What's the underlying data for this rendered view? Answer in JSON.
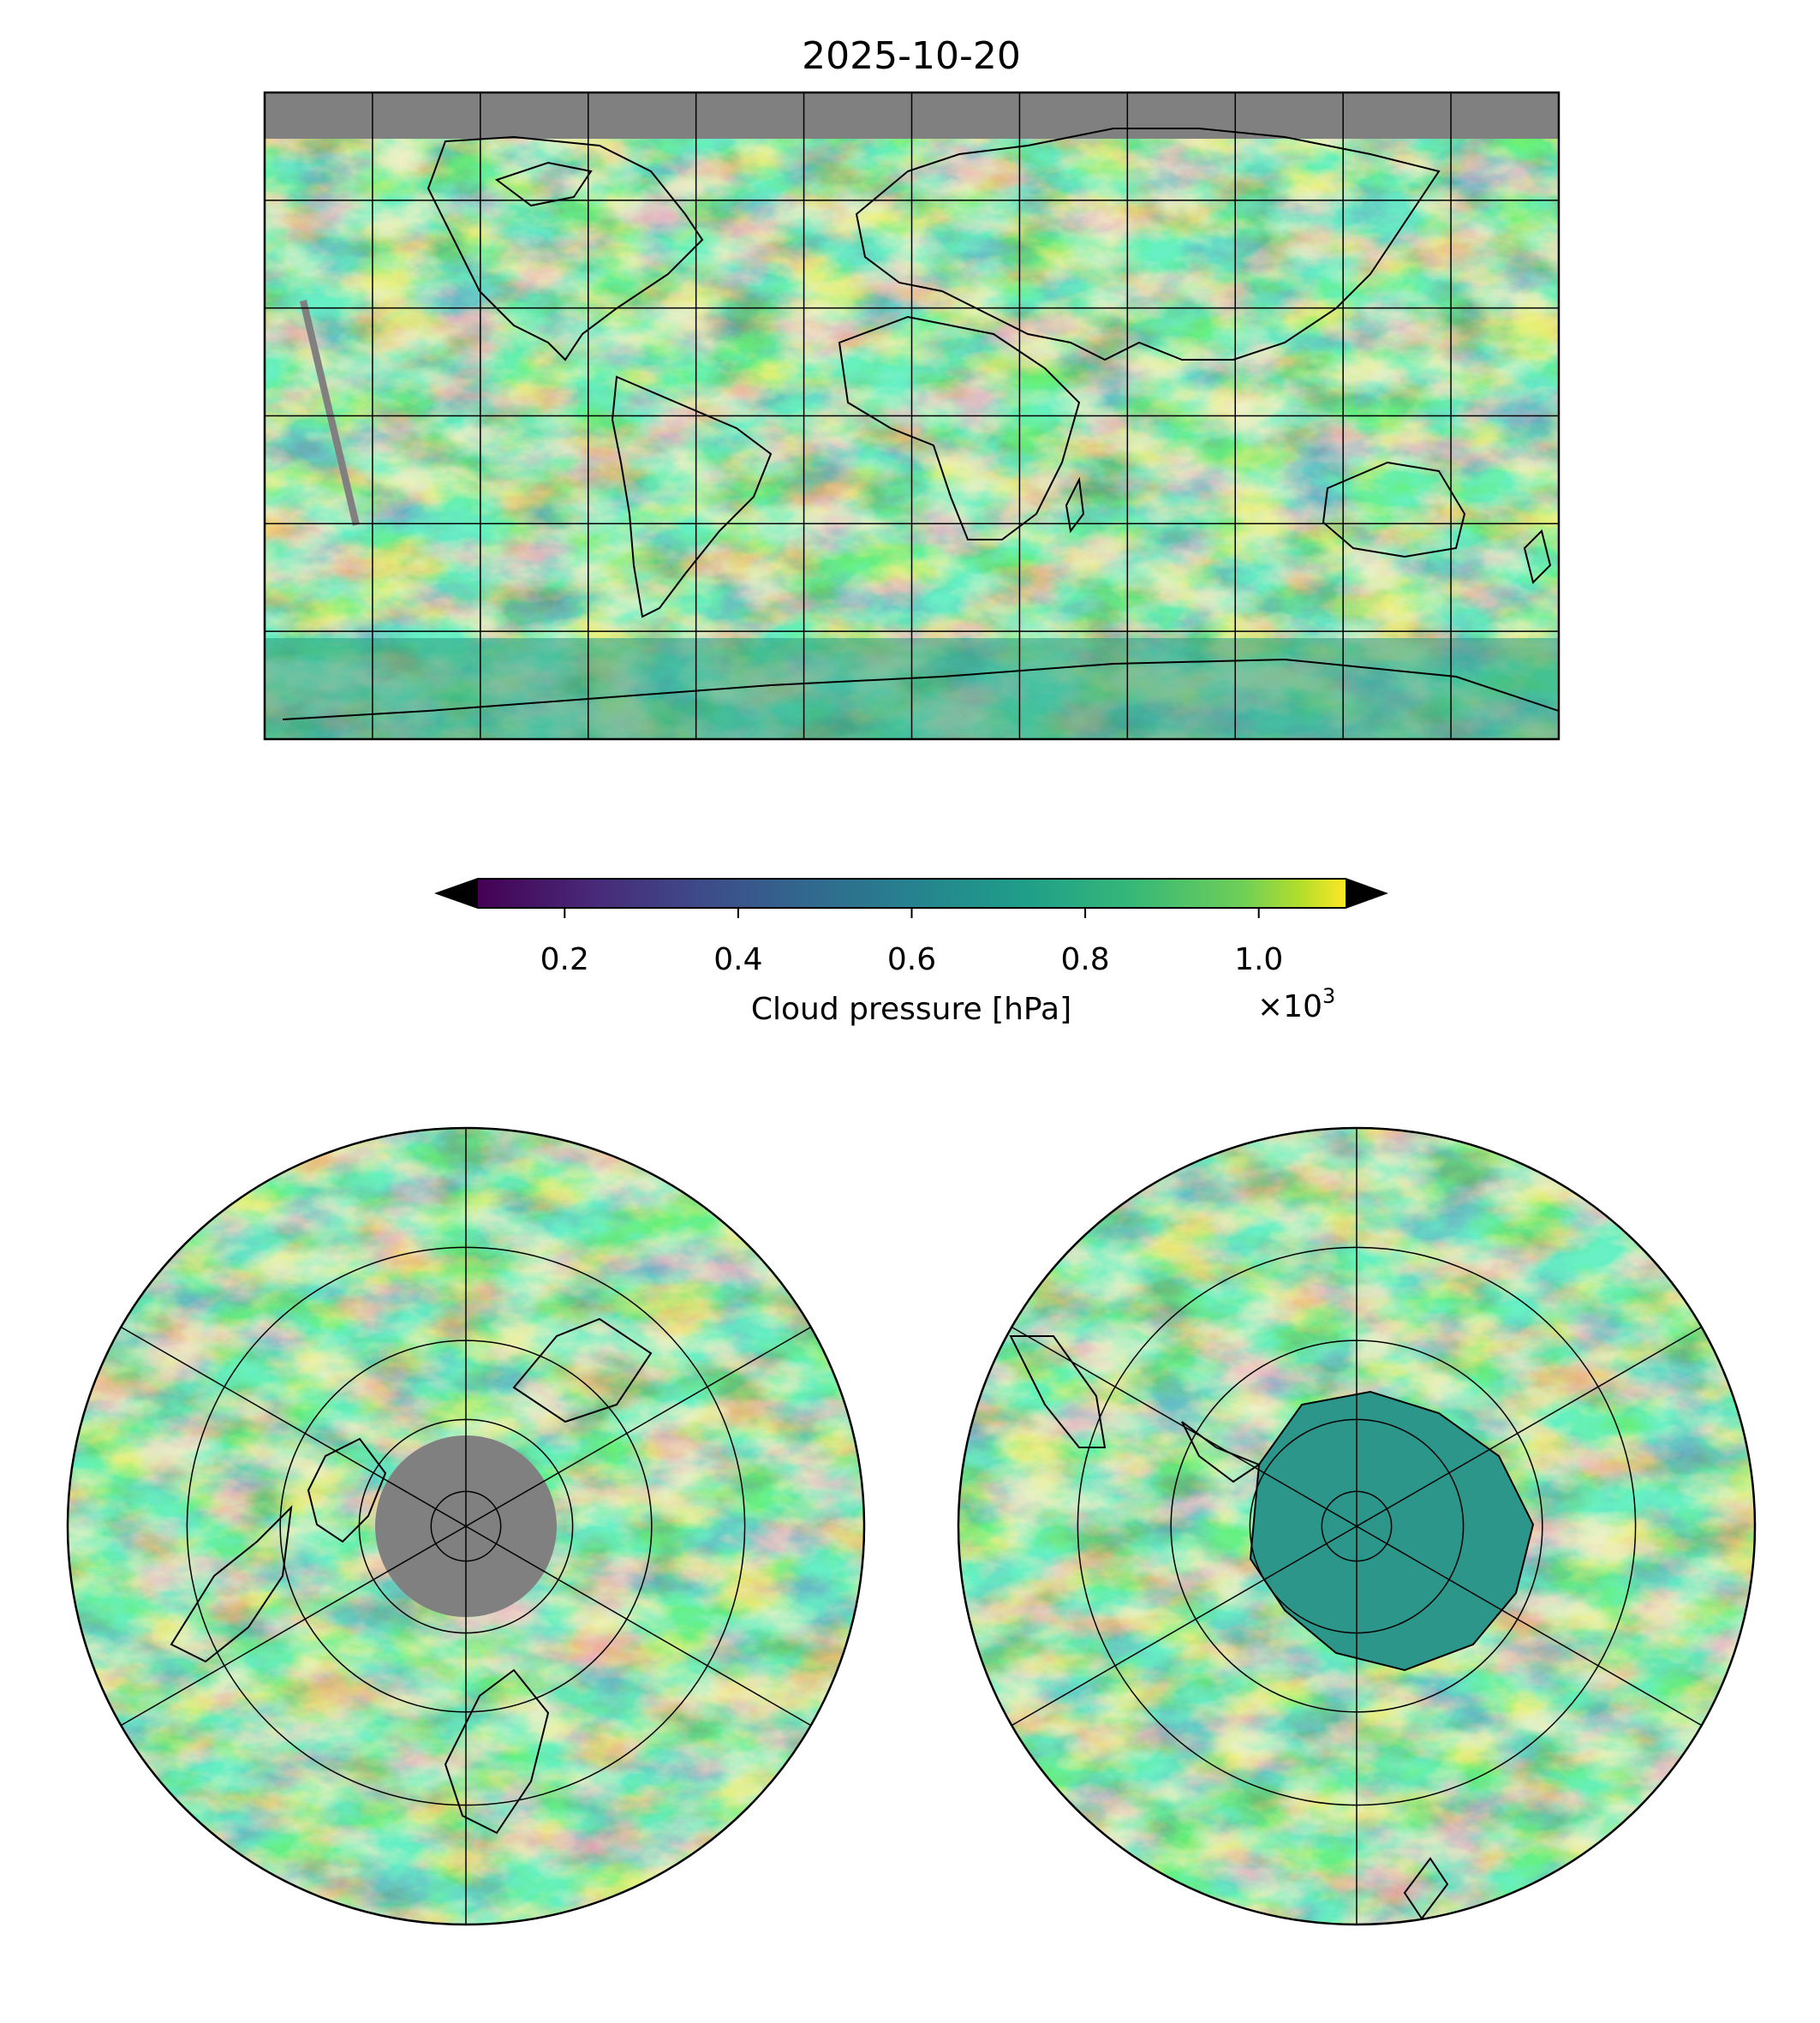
{
  "chart_data": [
    {
      "type": "heatmap",
      "name": "global-map",
      "projection": "plate-carree",
      "title": "2025-10-20",
      "xlim": [
        -180,
        180
      ],
      "ylim": [
        -90,
        90
      ],
      "gridlines_lon": [
        -150,
        -120,
        -90,
        -60,
        -30,
        0,
        30,
        60,
        90,
        120,
        150
      ],
      "gridlines_lat": [
        -60,
        -30,
        0,
        30,
        60
      ],
      "missing_data": "gray band north of ~77N and a diagonal gray satellite-gap stripe over the eastern Pacific",
      "variable": "Cloud pressure",
      "units": "hPa"
    },
    {
      "type": "colorbar",
      "name": "colorbar",
      "label": "Cloud pressure [hPa]",
      "colormap": "viridis",
      "range": [
        100,
        1100
      ],
      "tick_values": [
        200,
        400,
        600,
        800,
        1000
      ],
      "tick_labels": [
        "0.2",
        "0.4",
        "0.6",
        "0.8",
        "1.0"
      ],
      "offset_text": "×10",
      "offset_exponent": "3",
      "extend": "both",
      "under_color": "#c0c0c0",
      "over_color": "#404040"
    },
    {
      "type": "heatmap",
      "name": "north-polar-map",
      "projection": "north-polar-stereographic",
      "center": "North Pole",
      "boundary_lat": 0,
      "gridlines_lat": [
        20,
        40,
        60,
        80
      ],
      "gridlines_lon": [
        0,
        60,
        120,
        180,
        240,
        300
      ],
      "missing_data": "gray disc over the pole"
    },
    {
      "type": "heatmap",
      "name": "south-polar-map",
      "projection": "south-polar-stereographic",
      "center": "South Pole",
      "boundary_lat": 0,
      "gridlines_lat": [
        -20,
        -40,
        -60,
        -80
      ],
      "gridlines_lon": [
        0,
        60,
        120,
        180,
        240,
        300
      ]
    }
  ],
  "colors": {
    "viridis_0": "#440154",
    "viridis_25": "#3b528b",
    "viridis_50": "#21918c",
    "viridis_75": "#5ec962",
    "viridis_100": "#fde725",
    "missing": "#808080"
  }
}
